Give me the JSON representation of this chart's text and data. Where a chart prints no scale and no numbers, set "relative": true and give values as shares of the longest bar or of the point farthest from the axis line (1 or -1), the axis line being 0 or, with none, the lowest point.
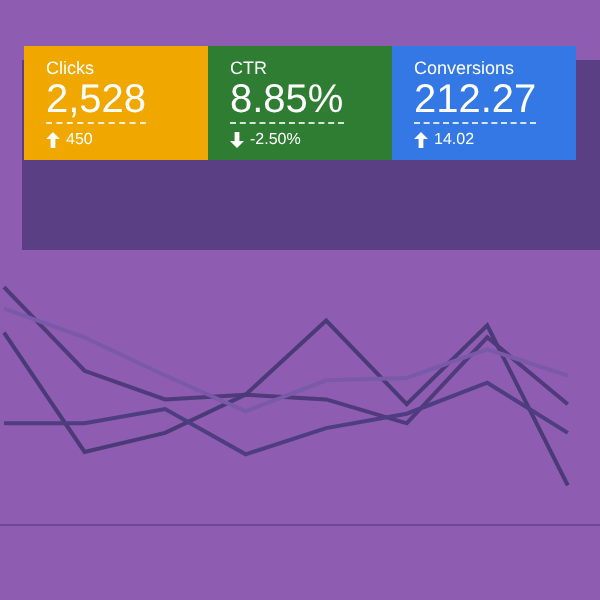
{
  "chart_data": [
    {
      "type": "other",
      "annotations": [
        "Clicks",
        "2,528",
        "450",
        "CTR",
        "8.85%",
        "-2.50%",
        "Conversions",
        "212.27",
        "14.02"
      ],
      "colors": [
        "#f0a800",
        "#2e7d32",
        "#3478e6"
      ]
    },
    {
      "type": "line",
      "relative": true,
      "categories": [
        null,
        null,
        null,
        null,
        null,
        null,
        null,
        null
      ],
      "legend": false,
      "marker": "none",
      "series": [
        {
          "color": "#4f3a7c",
          "values": [
            1,
            0.65,
            0.53,
            0.55,
            0.53,
            0.43,
            0.79,
            0.51
          ]
        },
        {
          "color": "#4a3a78",
          "values": [
            0.81,
            0.31,
            0.39,
            0.55,
            0.86,
            0.51,
            0.84,
            0.17
          ]
        },
        {
          "color": "#7a5aa8",
          "values": [
            0.91,
            0.79,
            0.63,
            0.48,
            0.61,
            0.62,
            0.74,
            0.63
          ]
        },
        {
          "color": "#4e3d80",
          "values": [
            0.43,
            0.43,
            0.49,
            0.3,
            0.41,
            0.47,
            0.6,
            0.39
          ]
        }
      ]
    }
  ]
}
